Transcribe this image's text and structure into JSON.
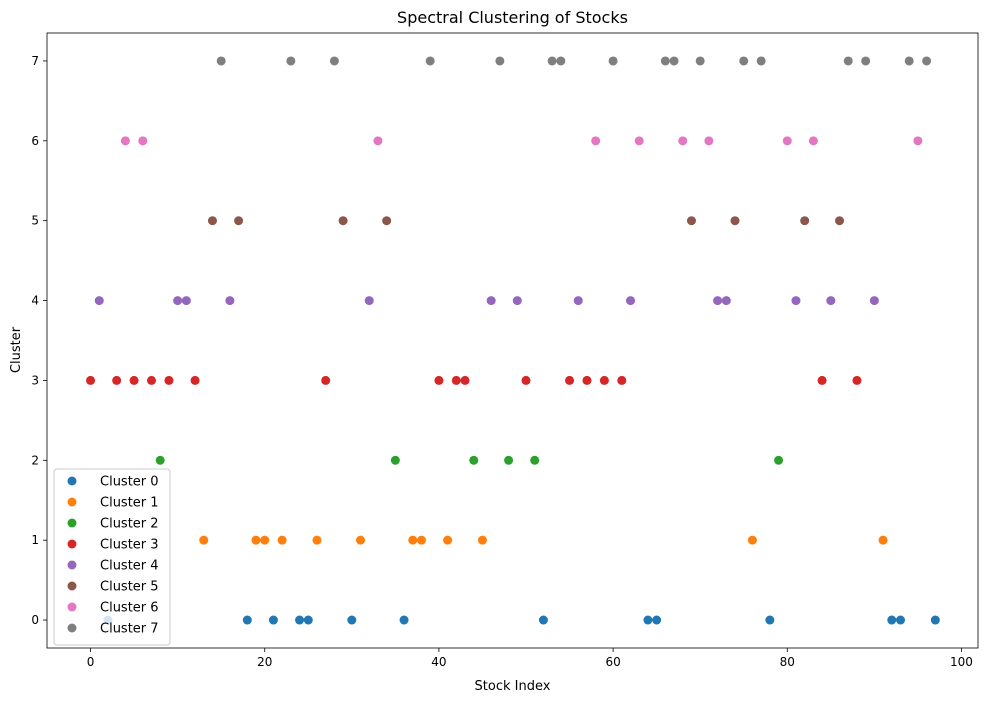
{
  "chart_data": {
    "type": "scatter",
    "title": "Spectral Clustering of Stocks",
    "xlabel": "Stock Index",
    "ylabel": "Cluster",
    "xlim": [
      -5,
      101.9
    ],
    "ylim": [
      -0.35,
      7.35
    ],
    "xticks": [
      0,
      20,
      40,
      60,
      80,
      100
    ],
    "yticks": [
      0,
      1,
      2,
      3,
      4,
      5,
      6,
      7
    ],
    "grid": false,
    "legend_position": "lower-left",
    "series": [
      {
        "name": "Cluster 0",
        "color": "#1f77b4",
        "y": 0,
        "x": [
          2,
          18,
          21,
          24,
          25,
          30,
          36,
          52,
          64,
          65,
          78,
          92,
          93,
          97
        ]
      },
      {
        "name": "Cluster 1",
        "color": "#ff7f0e",
        "y": 1,
        "x": [
          13,
          19,
          20,
          22,
          26,
          31,
          37,
          38,
          41,
          45,
          76,
          91
        ]
      },
      {
        "name": "Cluster 2",
        "color": "#2ca02c",
        "y": 2,
        "x": [
          8,
          35,
          44,
          48,
          51,
          79
        ]
      },
      {
        "name": "Cluster 3",
        "color": "#d62728",
        "y": 3,
        "x": [
          0,
          3,
          5,
          7,
          9,
          12,
          27,
          40,
          42,
          43,
          50,
          55,
          57,
          59,
          61,
          84,
          88
        ]
      },
      {
        "name": "Cluster 4",
        "color": "#9467bd",
        "y": 4,
        "x": [
          1,
          10,
          11,
          16,
          32,
          46,
          49,
          56,
          62,
          72,
          73,
          81,
          85,
          90
        ]
      },
      {
        "name": "Cluster 5",
        "color": "#8c564b",
        "y": 5,
        "x": [
          14,
          17,
          29,
          34,
          69,
          74,
          82,
          86
        ]
      },
      {
        "name": "Cluster 6",
        "color": "#e377c2",
        "y": 6,
        "x": [
          4,
          6,
          33,
          58,
          63,
          68,
          71,
          80,
          83,
          95
        ]
      },
      {
        "name": "Cluster 7",
        "color": "#7f7f7f",
        "y": 7,
        "x": [
          15,
          23,
          28,
          39,
          47,
          53,
          54,
          60,
          66,
          67,
          70,
          75,
          77,
          87,
          89,
          94,
          96
        ]
      }
    ]
  }
}
